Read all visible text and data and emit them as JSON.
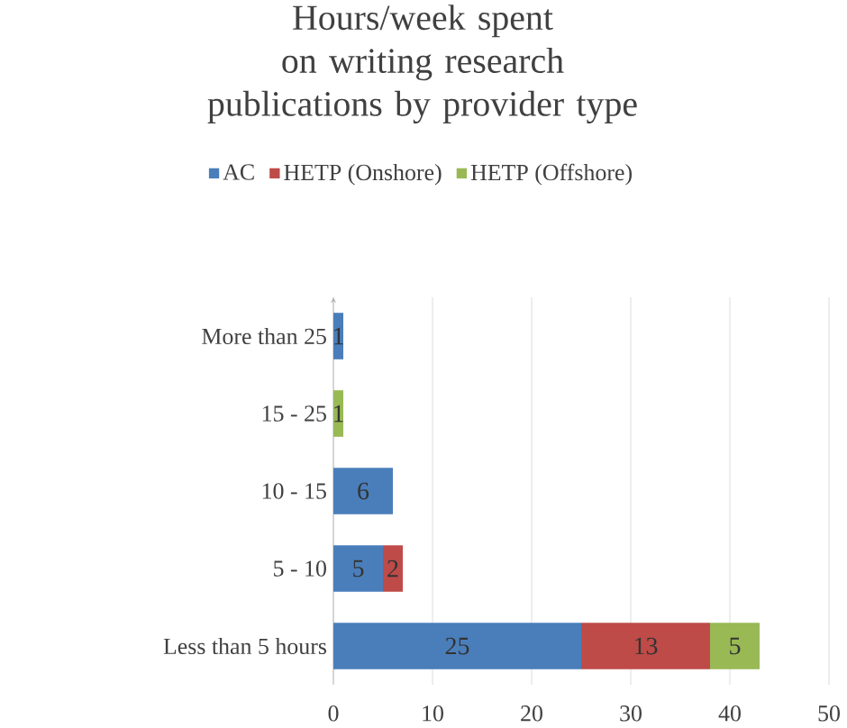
{
  "chart_data": {
    "type": "bar",
    "orientation": "horizontal",
    "stacked": true,
    "title": "Hours/week spent on writing research publications by provider type",
    "categories": [
      "More than 25",
      "15 - 25",
      "10 - 15",
      "5 - 10",
      "Less than 5 hours"
    ],
    "series": [
      {
        "name": "AC",
        "color": "#4a7ebb",
        "values": [
          1,
          null,
          6,
          5,
          25
        ]
      },
      {
        "name": "HETP (Onshore)",
        "color": "#be4b48",
        "values": [
          null,
          null,
          null,
          2,
          13
        ]
      },
      {
        "name": "HETP (Offshore)",
        "color": "#98b954",
        "values": [
          null,
          1,
          null,
          null,
          5
        ]
      }
    ],
    "xlim": [
      0,
      50
    ],
    "xticks": [
      0,
      10,
      20,
      30,
      40,
      50
    ],
    "grid": "x",
    "legend": "top",
    "data_labels": true
  }
}
